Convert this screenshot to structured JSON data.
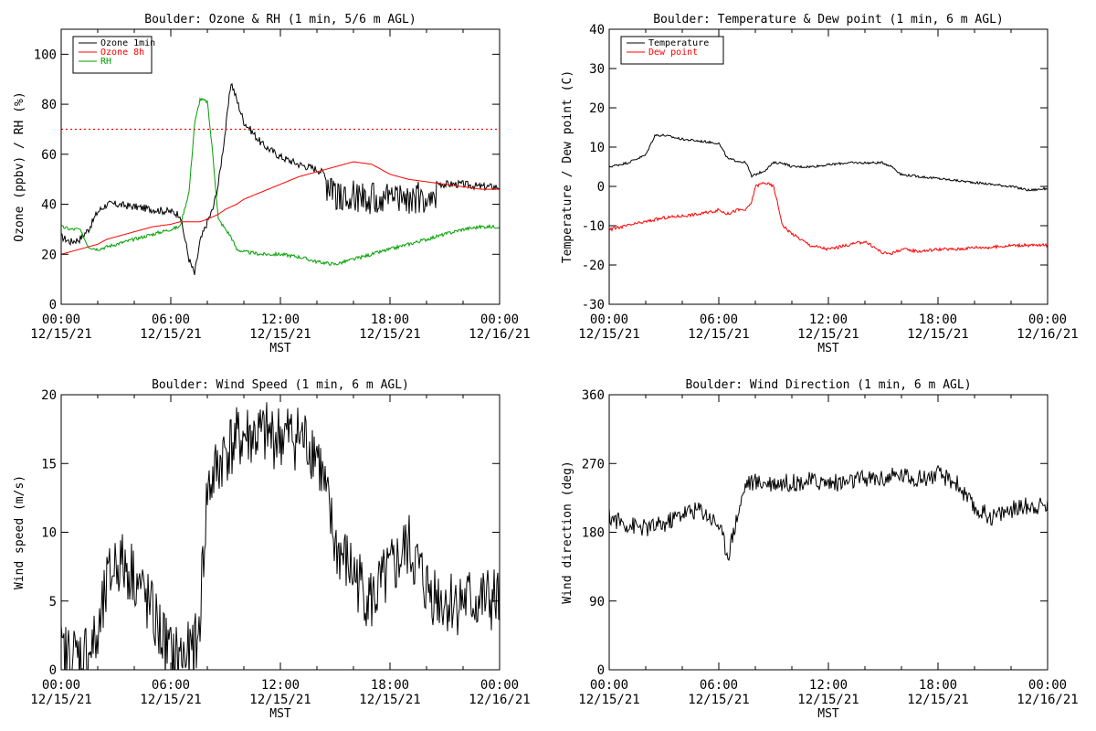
{
  "chart_data": [
    {
      "type": "line",
      "title": "Boulder: Ozone & RH (1 min, 5/6 m AGL)",
      "xlabel": "MST",
      "ylabel": "Ozone (ppbv) / RH (%)",
      "xlim": [
        "12/15/21 00:00",
        "12/16/21 00:00"
      ],
      "ylim": [
        0,
        110
      ],
      "yticks": [
        0,
        20,
        40,
        60,
        80,
        100
      ],
      "xticks": [
        "00:00",
        "06:00",
        "12:00",
        "18:00",
        "00:00"
      ],
      "xticks_date": [
        "12/15/21",
        "12/15/21",
        "12/15/21",
        "12/15/21",
        "12/16/21"
      ],
      "legend_position": "top-left",
      "reference_line": {
        "y": 70,
        "color": "#ff0000",
        "style": "dotted"
      },
      "x_hours": [
        0,
        0.5,
        1,
        1.5,
        2,
        2.5,
        3,
        4,
        5,
        6,
        6.5,
        7,
        7.3,
        7.6,
        8,
        8.3,
        8.6,
        9,
        9.3,
        9.6,
        10,
        11,
        12,
        13,
        14,
        15,
        16,
        17,
        18,
        19,
        20,
        21,
        22,
        23,
        24
      ],
      "series": [
        {
          "name": "Ozone 1min",
          "color": "#000000",
          "noise": 1.5,
          "burst": [
            14.5,
            20.5,
            11
          ],
          "values": [
            27,
            25,
            26,
            30,
            37,
            40,
            40,
            39,
            38,
            37,
            36,
            18,
            12,
            25,
            33,
            38,
            48,
            70,
            89,
            82,
            73,
            64,
            59,
            56,
            54,
            50,
            50,
            49,
            49,
            49,
            49,
            48,
            48,
            47,
            47
          ]
        },
        {
          "name": "Ozone 8h",
          "color": "#ff0000",
          "noise": 0,
          "values": [
            20,
            21,
            22,
            23,
            24,
            26,
            27,
            29,
            31,
            32,
            33,
            33,
            33,
            33,
            34,
            35,
            36,
            38,
            39,
            40,
            42,
            45,
            48,
            51,
            53,
            55,
            57,
            56,
            52,
            50,
            49,
            48,
            47,
            46,
            46
          ]
        },
        {
          "name": "RH",
          "color": "#00a000",
          "noise": 0.7,
          "burst": [
            0,
            0,
            0
          ],
          "values": [
            31,
            30,
            30,
            23,
            22,
            23,
            24,
            26,
            28,
            30,
            31,
            45,
            72,
            82,
            81,
            60,
            34,
            30,
            27,
            22,
            21,
            20,
            20,
            19,
            17,
            16,
            18,
            20,
            22,
            24,
            26,
            28,
            30,
            31,
            31
          ]
        }
      ]
    },
    {
      "type": "line",
      "title": "Boulder: Temperature & Dew point (1 min, 6 m AGL)",
      "xlabel": "MST",
      "ylabel": "Temperature / Dew point (C)",
      "xlim": [
        "12/15/21 00:00",
        "12/16/21 00:00"
      ],
      "ylim": [
        -30,
        40
      ],
      "yticks": [
        -30,
        -20,
        -10,
        0,
        10,
        20,
        30,
        40
      ],
      "xticks": [
        "00:00",
        "06:00",
        "12:00",
        "18:00",
        "00:00"
      ],
      "xticks_date": [
        "12/15/21",
        "12/15/21",
        "12/15/21",
        "12/15/21",
        "12/16/21"
      ],
      "legend_position": "top-left",
      "x_hours": [
        0,
        1,
        2,
        2.5,
        3,
        4,
        5,
        6,
        6.5,
        7,
        7.5,
        7.8,
        8,
        8.5,
        9,
        9.5,
        10,
        11,
        12,
        13,
        14,
        15,
        15.5,
        16,
        17,
        18,
        19,
        20,
        21,
        22,
        23,
        24
      ],
      "series": [
        {
          "name": "Temperature",
          "color": "#000000",
          "noise": 0.3,
          "values": [
            5,
            6,
            8,
            13,
            13,
            12,
            11.5,
            11,
            7,
            6.5,
            6,
            2.5,
            3,
            4,
            6,
            6,
            5,
            5,
            5.5,
            6,
            6,
            6,
            5,
            3,
            2.5,
            2,
            1.5,
            1,
            0.5,
            0,
            -1,
            -0.5
          ]
        },
        {
          "name": "Dew point",
          "color": "#ff0000",
          "noise": 0.4,
          "values": [
            -11,
            -10,
            -9,
            -8.5,
            -8,
            -7.5,
            -7,
            -6,
            -7,
            -6,
            -6,
            -4,
            0,
            1,
            0,
            -10,
            -12,
            -15,
            -16,
            -15,
            -14,
            -17,
            -17,
            -16,
            -16.5,
            -16,
            -16,
            -15.5,
            -15.5,
            -15,
            -15,
            -15
          ]
        }
      ]
    },
    {
      "type": "line",
      "title": "Boulder: Wind Speed (1 min, 6 m AGL)",
      "xlabel": "MST",
      "ylabel": "Wind speed (m/s)",
      "xlim": [
        "12/15/21 00:00",
        "12/16/21 00:00"
      ],
      "ylim": [
        0,
        20
      ],
      "yticks": [
        0,
        5,
        10,
        15,
        20
      ],
      "xticks": [
        "00:00",
        "06:00",
        "12:00",
        "18:00",
        "00:00"
      ],
      "xticks_date": [
        "12/15/21",
        "12/15/21",
        "12/15/21",
        "12/15/21",
        "12/16/21"
      ],
      "x_hours": [
        0,
        1,
        2,
        2.5,
        3,
        4,
        5,
        6,
        7,
        7.5,
        8,
        9,
        10,
        11,
        12,
        13,
        14,
        15,
        16,
        17,
        18,
        19,
        20,
        21,
        22,
        23,
        24
      ],
      "series": [
        {
          "name": "",
          "color": "#000000",
          "noise": 2.5,
          "values": [
            1,
            1,
            2,
            6,
            8,
            7,
            4,
            1,
            1,
            2,
            13,
            16,
            17,
            17,
            17,
            17,
            16,
            9,
            7,
            5,
            7,
            9,
            6,
            5,
            5,
            5,
            5
          ]
        }
      ]
    },
    {
      "type": "line",
      "title": "Boulder: Wind Direction (1 min, 6 m AGL)",
      "xlabel": "MST",
      "ylabel": "Wind direction (deg)",
      "xlim": [
        "12/15/21 00:00",
        "12/16/21 00:00"
      ],
      "ylim": [
        0,
        360
      ],
      "yticks": [
        0,
        90,
        180,
        270,
        360
      ],
      "xticks": [
        "00:00",
        "06:00",
        "12:00",
        "18:00",
        "00:00"
      ],
      "xticks_date": [
        "12/15/21",
        "12/15/21",
        "12/15/21",
        "12/15/21",
        "12/16/21"
      ],
      "x_hours": [
        0,
        1,
        2,
        3,
        4,
        5,
        6,
        6.5,
        7,
        7.5,
        8,
        9,
        10,
        11,
        12,
        13,
        14,
        15,
        16,
        17,
        18,
        19,
        20,
        21,
        22,
        23,
        24
      ],
      "series": [
        {
          "name": "",
          "color": "#000000",
          "noise": 12,
          "values": [
            200,
            190,
            185,
            190,
            205,
            210,
            190,
            150,
            200,
            245,
            245,
            245,
            245,
            247,
            245,
            245,
            250,
            250,
            255,
            250,
            255,
            245,
            210,
            200,
            210,
            215,
            215
          ]
        }
      ]
    }
  ]
}
